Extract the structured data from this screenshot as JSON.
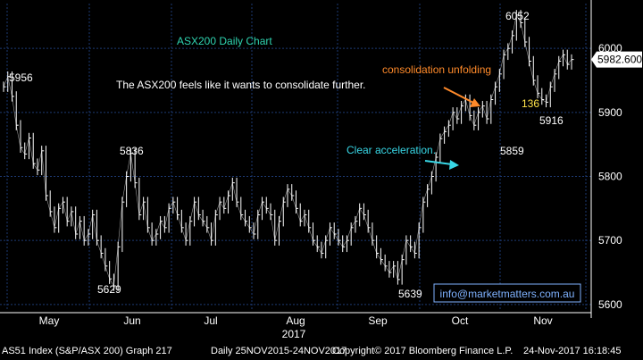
{
  "colors": {
    "background": "#000000",
    "grid": "#1d3a73",
    "price": "#ffffff",
    "title": "#2fd3b0",
    "annotation_orange": "#ff8a2a",
    "annotation_cyan": "#38d7e6",
    "label_yellow": "#ffe34a",
    "website": "#7fb2ff"
  },
  "chart_data": {
    "type": "line",
    "title": "ASX200 Daily Chart",
    "xlabel": "2017",
    "ylabel": "",
    "ylim": [
      5590,
      6070
    ],
    "y_ticks": [
      5600,
      5700,
      5800,
      5900,
      6000
    ],
    "y_tick_labels": [
      "5600",
      "5700",
      "5800",
      "5900",
      "6000"
    ],
    "x_ticks": [
      "May",
      "Jun",
      "Jul",
      "Aug",
      "Sep",
      "Oct",
      "Nov"
    ],
    "year_label": "2017",
    "grid": true,
    "last_price": "5982.600",
    "series": [
      {
        "values": [
          5940,
          5956,
          5925,
          5880,
          5845,
          5835,
          5860,
          5820,
          5810,
          5840,
          5770,
          5745,
          5720,
          5750,
          5760,
          5730,
          5745,
          5710,
          5730,
          5700,
          5710,
          5740,
          5700,
          5680,
          5660,
          5640,
          5629,
          5690,
          5760,
          5800,
          5836,
          5790,
          5740,
          5760,
          5720,
          5700,
          5710,
          5730,
          5720,
          5750,
          5760,
          5740,
          5720,
          5700,
          5730,
          5760,
          5740,
          5730,
          5720,
          5700,
          5740,
          5760,
          5750,
          5770,
          5790,
          5760,
          5740,
          5730,
          5720,
          5710,
          5740,
          5760,
          5750,
          5740,
          5700,
          5730,
          5760,
          5780,
          5770,
          5750,
          5730,
          5740,
          5720,
          5700,
          5690,
          5680,
          5700,
          5720,
          5710,
          5700,
          5690,
          5700,
          5720,
          5730,
          5750,
          5740,
          5720,
          5700,
          5680,
          5670,
          5660,
          5650,
          5660,
          5639,
          5670,
          5700,
          5690,
          5680,
          5720,
          5760,
          5780,
          5800,
          5830,
          5859,
          5870,
          5880,
          5900,
          5890,
          5910,
          5920,
          5895,
          5880,
          5900,
          5910,
          5890,
          5920,
          5940,
          5960,
          5990,
          6000,
          6020,
          6052,
          6040,
          6010,
          5980,
          5950,
          5930,
          5920,
          5916,
          5940,
          5960,
          5980,
          5990,
          5975,
          5982.6
        ]
      }
    ],
    "point_labels": [
      {
        "text": "5956",
        "index": 1
      },
      {
        "text": "5836",
        "index": 30
      },
      {
        "text": "5629",
        "index": 26
      },
      {
        "text": "5639",
        "index": 93
      },
      {
        "text": "5859",
        "index": 103
      },
      {
        "text": "6052",
        "index": 121
      },
      {
        "text": "5916",
        "index": 128
      }
    ],
    "annotations": {
      "main_text": "The ASX200 feels like it wants to consolidate further.",
      "consolidation": "consolidation unfolding",
      "acceleration": "Clear acceleration.",
      "count_label": "136",
      "website": "info@marketmatters.com.au"
    }
  },
  "footer": {
    "index_info": "AS51 Index (S&P/ASX 200) Graph 217",
    "range": "Daily 25NOV2015-24NOV2017",
    "copyright": "Copyright© 2017 Bloomberg Finance L.P.",
    "timestamp": "24-Nov-2017 16:18:45"
  }
}
